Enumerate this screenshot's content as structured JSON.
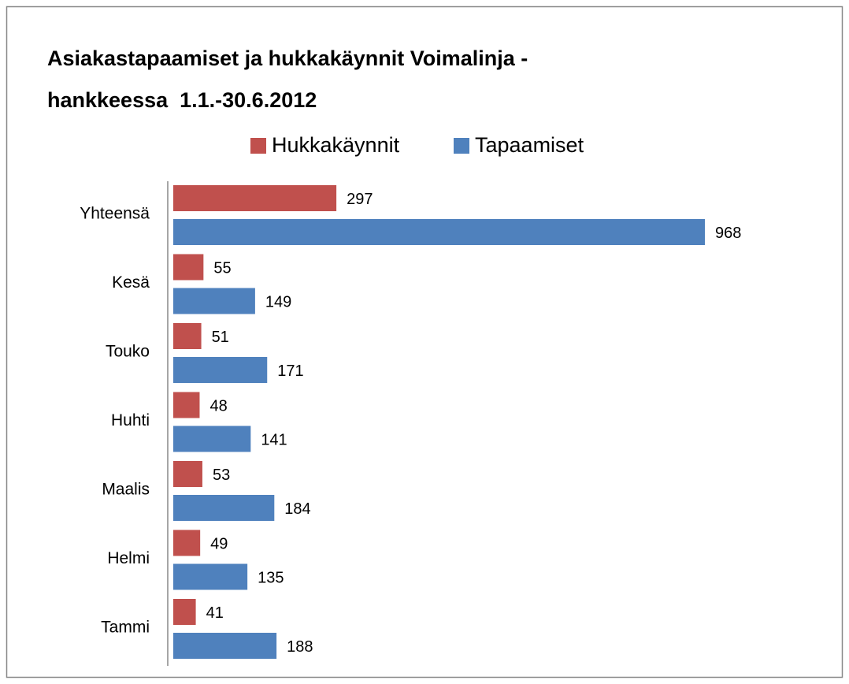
{
  "chart_data": {
    "type": "hbar",
    "title": "Asiakastapaamiset ja hukkakäynnit Voimalinja -\nhankkeessa  1.1.-30.6.2012",
    "categories": [
      "Yhteensä",
      "Kesä",
      "Touko",
      "Huhti",
      "Maalis",
      "Helmi",
      "Tammi"
    ],
    "series": [
      {
        "name": "Hukkakäynnit",
        "color": "#c0504d",
        "values": [
          297,
          55,
          51,
          48,
          53,
          49,
          41
        ]
      },
      {
        "name": "Tapaamiset",
        "color": "#4f81bd",
        "values": [
          968,
          149,
          171,
          141,
          184,
          135,
          188
        ]
      }
    ],
    "legend": "top"
  }
}
